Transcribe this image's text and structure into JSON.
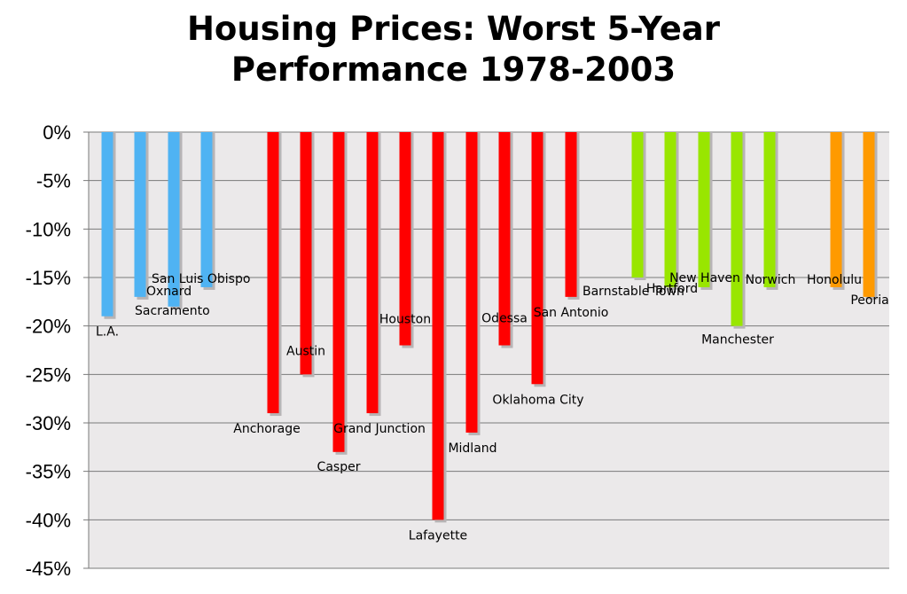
{
  "chart_data": {
    "type": "bar",
    "title_lines": [
      "Housing Prices: Worst 5-Year",
      "Performance 1978-2003"
    ],
    "xlabel": "",
    "ylabel": "",
    "ylim": [
      -45,
      0
    ],
    "y_ticks": [
      0,
      -5,
      -10,
      -15,
      -20,
      -25,
      -30,
      -35,
      -40,
      -45
    ],
    "y_tick_labels": [
      "0%",
      "-5%",
      "-10%",
      "-15%",
      "-20%",
      "-25%",
      "-30%",
      "-35%",
      "-40%",
      "-45%"
    ],
    "grid": true,
    "plot_background": "#ebe9ea",
    "colors": {
      "blue": "#4fb3f3",
      "red": "#ff0000",
      "green": "#99e600",
      "orange": "#ff9a00",
      "shadow": "#b7b4b5",
      "grid": "#7a7a7a"
    },
    "bars": [
      {
        "category": "L.A.",
        "value": -19,
        "color": "blue"
      },
      {
        "category": "Oxnard",
        "value": -17,
        "color": "blue"
      },
      {
        "category": "Sacramento",
        "value": -18,
        "color": "blue"
      },
      {
        "category": "San Luis Obispo",
        "value": -16,
        "color": "blue"
      },
      {
        "category": "Anchorage",
        "value": -29,
        "color": "red"
      },
      {
        "category": "Austin",
        "value": -25,
        "color": "red"
      },
      {
        "category": "Casper",
        "value": -33,
        "color": "red"
      },
      {
        "category": "Grand Junction",
        "value": -29,
        "color": "red"
      },
      {
        "category": "Houston",
        "value": -22,
        "color": "red"
      },
      {
        "category": "Lafayette",
        "value": -40,
        "color": "red"
      },
      {
        "category": "Midland",
        "value": -31,
        "color": "red"
      },
      {
        "category": "Odessa",
        "value": -22,
        "color": "red"
      },
      {
        "category": "Oklahoma City",
        "value": -26,
        "color": "red"
      },
      {
        "category": "San Antonio",
        "value": -17,
        "color": "red"
      },
      {
        "category": "Barnstable Town",
        "value": -15,
        "color": "green"
      },
      {
        "category": "Hartford",
        "value": -16,
        "color": "green"
      },
      {
        "category": "New Haven",
        "value": -16,
        "color": "green"
      },
      {
        "category": "Manchester",
        "value": -20,
        "color": "green"
      },
      {
        "category": "Norwich",
        "value": -16,
        "color": "green"
      },
      {
        "category": "Honolulu",
        "value": -16,
        "color": "orange"
      },
      {
        "category": "Peoria",
        "value": -17,
        "color": "orange"
      }
    ]
  }
}
